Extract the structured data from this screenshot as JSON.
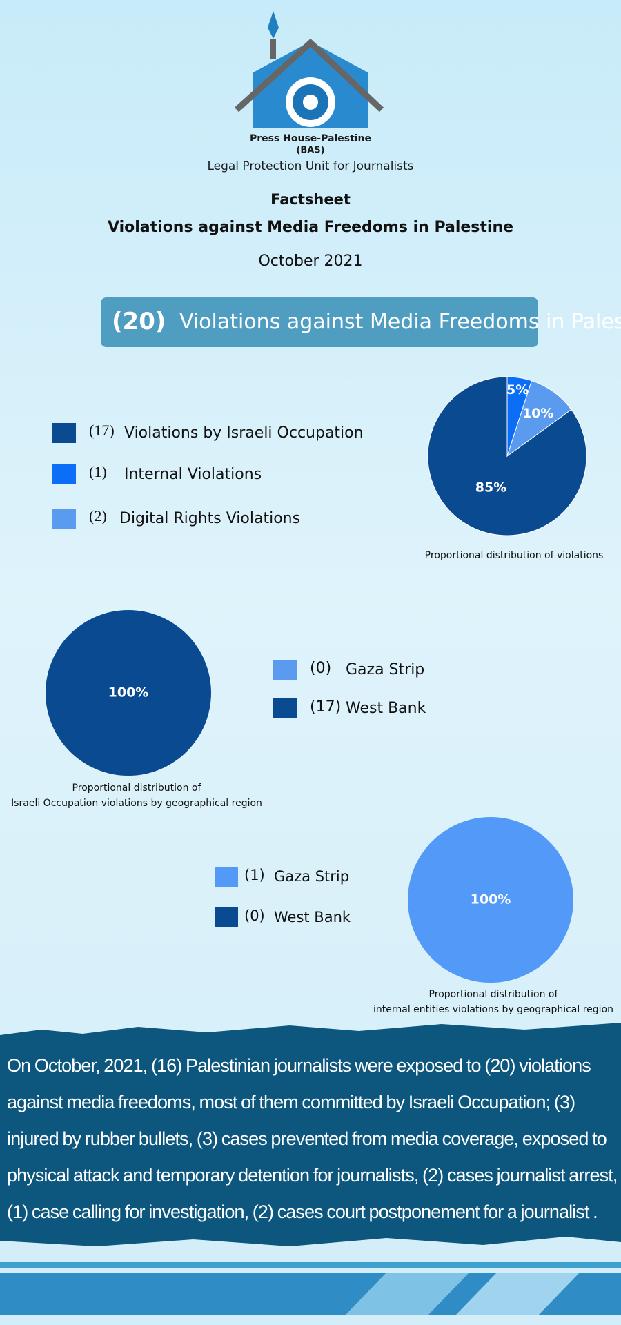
{
  "header": {
    "org_name": "Press House-Palestine",
    "org_abbr": "(BAS)",
    "unit": "Legal Protection Unit for Journalists",
    "doc_type": "Factsheet",
    "title": "Violations against Media Freedoms in Palestine",
    "date": "October 2021"
  },
  "banner": {
    "count": "(20)",
    "text": "Violations against Media Freedoms in Palestine"
  },
  "chart_data": [
    {
      "type": "pie",
      "caption": [
        "Proportional distribution of violations"
      ],
      "categories": [
        "Violations by Israeli Occupation",
        "Internal Violations",
        "Digital Rights Violations"
      ],
      "count_labels": [
        "(17)",
        "(1)",
        "(2)"
      ],
      "values": [
        85,
        5,
        10
      ],
      "value_labels": [
        "85%",
        "5%",
        "10%"
      ],
      "colors": [
        "#0a4a91",
        "#0b6ef7",
        "#5b9bef"
      ]
    },
    {
      "type": "pie",
      "caption": [
        "Proportional distribution of",
        "Israeli Occupation violations by geographical region"
      ],
      "categories": [
        "Gaza Strip",
        "West Bank"
      ],
      "count_labels": [
        "(0)",
        "(17)"
      ],
      "values": [
        0,
        100
      ],
      "value_labels": [
        null,
        "100%"
      ],
      "colors": [
        "#5b9bef",
        "#0a4a91"
      ]
    },
    {
      "type": "pie",
      "caption": [
        "Proportional distribution of",
        "internal entities violations by geographical region"
      ],
      "categories": [
        "Gaza Strip",
        "West Bank"
      ],
      "count_labels": [
        "(1)",
        "(0)"
      ],
      "values": [
        100,
        0
      ],
      "value_labels": [
        "100%",
        null
      ],
      "colors": [
        "#5399f7",
        "#0a4a91"
      ]
    }
  ],
  "summary": "On October, 2021, (16) Palestinian journalists were exposed to (20) violations against media freedoms, most of them committed by Israeli Occupation; (3) injured by rubber bullets, (3) cases prevented from media coverage, exposed to physical attack and temporary detention for journalists, (2) cases journalist arrest, (1) case calling for investigation, (2) cases court postponement for a journalist ."
}
